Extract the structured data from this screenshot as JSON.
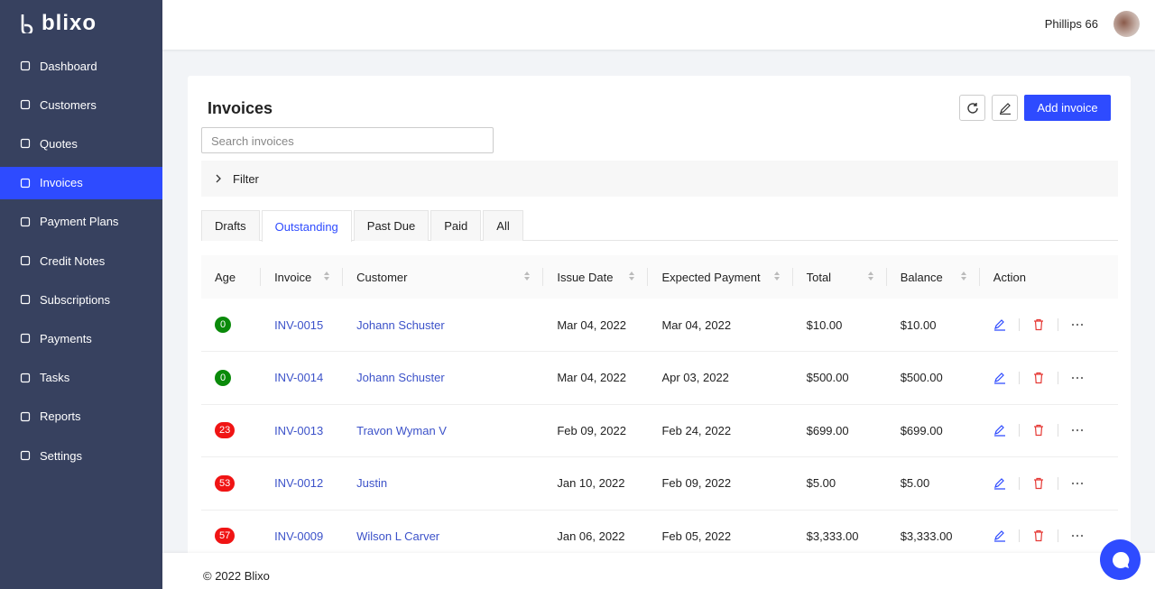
{
  "brand": "blixo",
  "user": "Phillips 66",
  "nav": [
    "Dashboard",
    "Customers",
    "Quotes",
    "Invoices",
    "Payment Plans",
    "Credit Notes",
    "Subscriptions",
    "Payments",
    "Tasks",
    "Reports",
    "Settings"
  ],
  "page": {
    "title": "Invoices",
    "add_button": "Add invoice",
    "search_placeholder": "Search invoices",
    "filter": "Filter"
  },
  "tabs": [
    "Drafts",
    "Outstanding",
    "Past Due",
    "Paid",
    "All"
  ],
  "table": {
    "columns": [
      "Age",
      "Invoice",
      "Customer",
      "Issue Date",
      "Expected Payment",
      "Total",
      "Balance",
      "Action"
    ],
    "rows": [
      [
        "0",
        "INV-0015",
        "Johann Schuster",
        "Mar 04, 2022",
        "Mar 04, 2022",
        "$10.00",
        "$10.00"
      ],
      [
        "0",
        "INV-0014",
        "Johann Schuster",
        "Mar 04, 2022",
        "Apr 03, 2022",
        "$500.00",
        "$500.00"
      ],
      [
        "23",
        "INV-0013",
        "Travon Wyman V",
        "Feb 09, 2022",
        "Feb 24, 2022",
        "$699.00",
        "$699.00"
      ],
      [
        "53",
        "INV-0012",
        "Justin",
        "Jan 10, 2022",
        "Feb 09, 2022",
        "$5.00",
        "$5.00"
      ],
      [
        "57",
        "INV-0009",
        "Wilson L Carver",
        "Jan 06, 2022",
        "Feb 05, 2022",
        "$3,333.00",
        "$3,333.00"
      ]
    ]
  },
  "footer": "© 2022 Blixo"
}
